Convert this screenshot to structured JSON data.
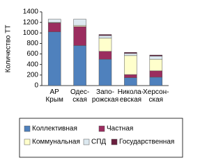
{
  "chart_data": {
    "type": "bar",
    "stacked": true,
    "y_label": "Количество ТТ",
    "categories": [
      "АР\nКрым",
      "Одес-\nская",
      "Запо-\nрожская",
      "Никола-\nевская",
      "Херсон-\nская"
    ],
    "series": [
      {
        "name": "Коллективная",
        "color": "#4f81bd",
        "values": [
          1020,
          760,
          500,
          150,
          160
        ]
      },
      {
        "name": "Частная",
        "color": "#9b2d5f",
        "values": [
          170,
          360,
          150,
          60,
          120
        ]
      },
      {
        "name": "Коммунальная",
        "color": "#ffffcc",
        "values": [
          10,
          20,
          250,
          360,
          220
        ]
      },
      {
        "name": "СПД",
        "color": "#dde9f0",
        "values": [
          60,
          120,
          50,
          40,
          60
        ]
      },
      {
        "name": "Государственная",
        "color": "#6b1f3f",
        "values": [
          0,
          0,
          20,
          20,
          20
        ]
      }
    ],
    "ylim": [
      0,
      1400
    ],
    "yticks": [
      0,
      200,
      400,
      600,
      800,
      1000,
      1200,
      1400
    ]
  }
}
